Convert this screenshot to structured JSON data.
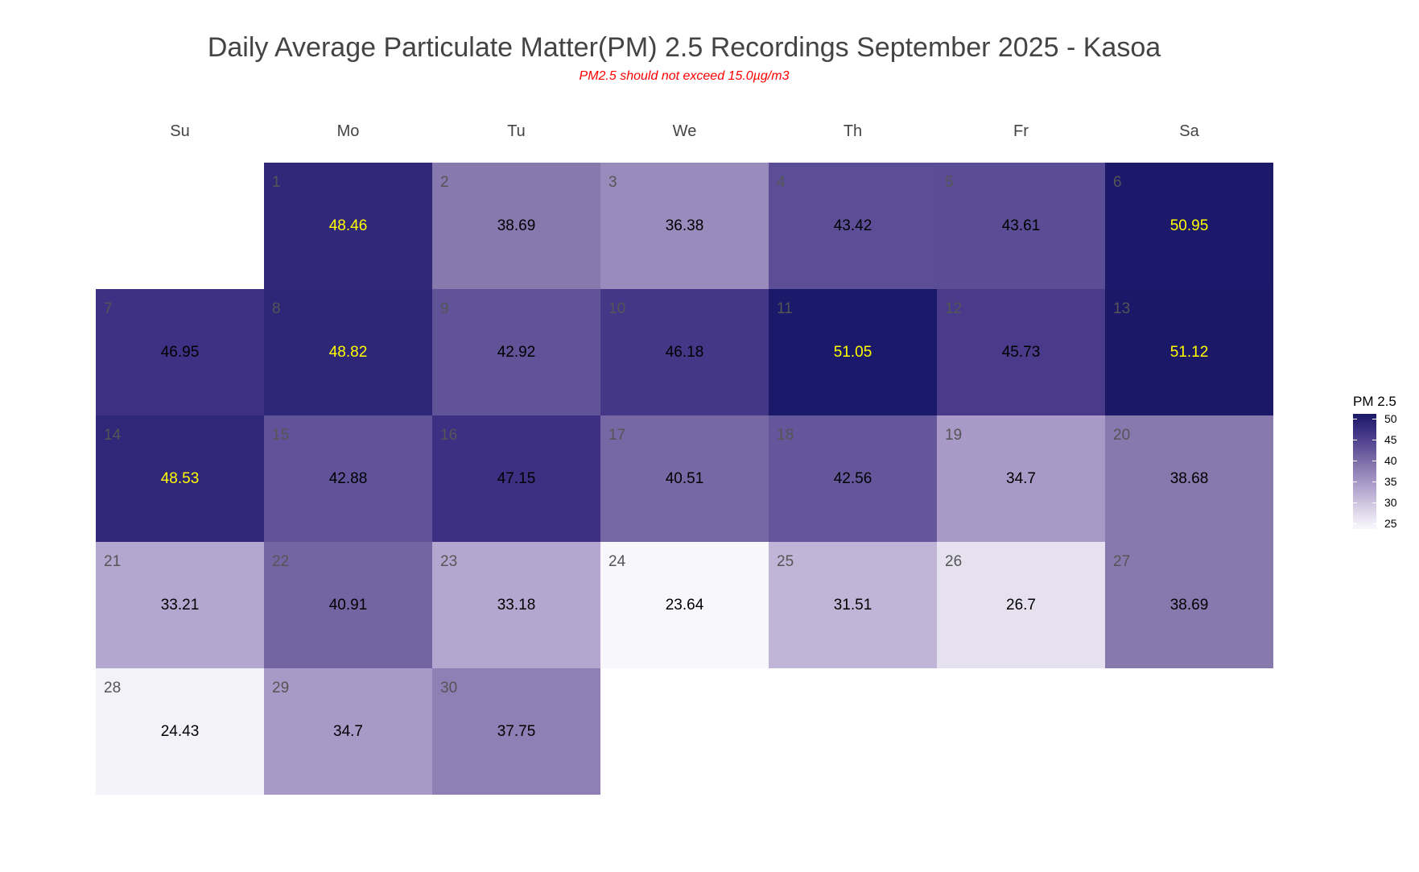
{
  "chart_data": {
    "type": "heatmap",
    "title": "Daily Average Particulate Matter(PM) 2.5 Recordings September 2025 -  Kasoa",
    "subtitle": "PM2.5 should not exceed 15.0µg/m3",
    "weekdays": [
      "Su",
      "Mo",
      "Tu",
      "We",
      "Th",
      "Fr",
      "Sa"
    ],
    "first_weekday_index": 1,
    "days": [
      1,
      2,
      3,
      4,
      5,
      6,
      7,
      8,
      9,
      10,
      11,
      12,
      13,
      14,
      15,
      16,
      17,
      18,
      19,
      20,
      21,
      22,
      23,
      24,
      25,
      26,
      27,
      28,
      29,
      30
    ],
    "values": [
      48.46,
      38.69,
      36.38,
      43.42,
      43.61,
      50.95,
      46.95,
      48.82,
      42.92,
      46.18,
      51.05,
      45.73,
      51.12,
      48.53,
      42.88,
      47.15,
      40.51,
      42.56,
      34.7,
      38.68,
      33.21,
      40.91,
      33.18,
      23.64,
      31.51,
      26.7,
      38.69,
      24.43,
      34.7,
      37.75
    ],
    "value_labels": [
      "48.46",
      "38.69",
      "36.38",
      "43.42",
      "43.61",
      "50.95",
      "46.95",
      "48.82",
      "42.92",
      "46.18",
      "51.05",
      "45.73",
      "51.12",
      "48.53",
      "42.88",
      "47.15",
      "40.51",
      "42.56",
      "34.7",
      "38.68",
      "33.21",
      "40.91",
      "33.18",
      "23.64",
      "31.51",
      "26.7",
      "38.69",
      "24.43",
      "34.7",
      "37.75"
    ],
    "legend": {
      "title": "PM 2.5",
      "ticks": [
        "50",
        "45",
        "40",
        "35",
        "30",
        "25"
      ],
      "range": [
        23.64,
        51.12
      ],
      "placement": "right"
    },
    "colors": {
      "low": "#f7f5fb",
      "high": "#1a1868",
      "text_high": "#ffff00",
      "text_low": "#000000"
    }
  }
}
